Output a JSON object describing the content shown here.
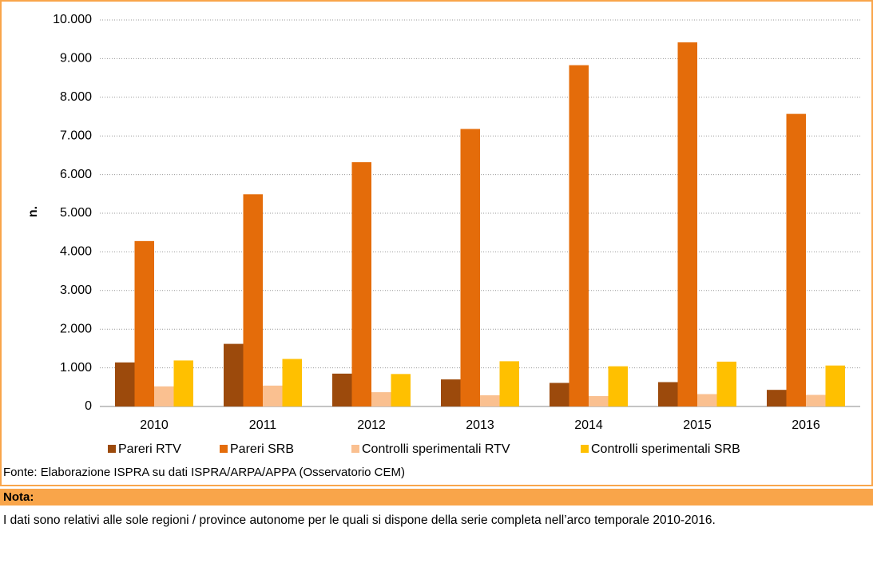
{
  "chart_data": {
    "type": "bar",
    "categories": [
      "2010",
      "2011",
      "2012",
      "2013",
      "2014",
      "2015",
      "2016"
    ],
    "y_label": "n.",
    "series": [
      {
        "name": "Pareri RTV",
        "color": "#9c4a0c",
        "values": [
          1140,
          1620,
          850,
          700,
          610,
          630,
          430
        ]
      },
      {
        "name": "Pareri SRB",
        "color": "#e46c0a",
        "values": [
          4280,
          5490,
          6320,
          7180,
          8830,
          9420,
          7570
        ]
      },
      {
        "name": "Controlli sperimentali RTV",
        "color": "#fac090",
        "values": [
          520,
          540,
          370,
          290,
          270,
          320,
          300
        ]
      },
      {
        "name": "Controlli sperimentali SRB",
        "color": "#ffc000",
        "values": [
          1190,
          1230,
          840,
          1170,
          1040,
          1160,
          1060
        ]
      }
    ],
    "ylim": [
      0,
      10000
    ],
    "yticks": [
      0,
      {
        "value": 1000,
        "label": "1.000"
      },
      {
        "value": 2000,
        "label": "2.000"
      },
      {
        "value": 3000,
        "label": "3.000"
      },
      {
        "value": 4000,
        "label": "4.000"
      },
      {
        "value": 5000,
        "label": "5.000"
      },
      {
        "value": 6000,
        "label": "6.000"
      },
      {
        "value": 7000,
        "label": "7.000"
      },
      {
        "value": 8000,
        "label": "8.000"
      },
      {
        "value": 9000,
        "label": "9.000"
      },
      {
        "value": 10000,
        "label": "10.000"
      }
    ],
    "grid": true,
    "legend": "bottom"
  },
  "source": "Fonte: Elaborazione ISPRA su dati ISPRA/ARPA/APPA (Osservatorio CEM)",
  "note": {
    "title": "Nota:",
    "text": "I dati sono relativi alle sole regioni / province autonome per le quali si dispone della serie completa nell’arco temporale 2010-2016."
  }
}
